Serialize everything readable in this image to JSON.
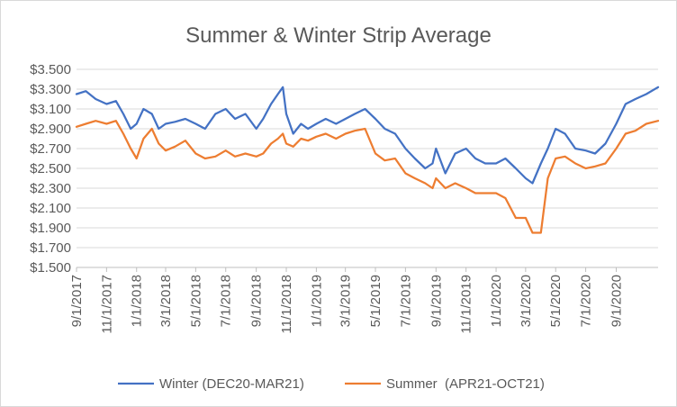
{
  "chart_data": {
    "type": "line",
    "title": "Summer & Winter Strip Average",
    "xlabel": "",
    "ylabel": "",
    "ylim": [
      1.5,
      3.5
    ],
    "y_ticks": [
      "$1.500",
      "$1.700",
      "$1.900",
      "$2.100",
      "$2.300",
      "$2.500",
      "$2.700",
      "$2.900",
      "$3.100",
      "$3.300",
      "$3.500"
    ],
    "x_ticks": [
      "9/1/2017",
      "11/1/2017",
      "1/1/2018",
      "3/1/2018",
      "5/1/2018",
      "7/1/2018",
      "9/1/2018",
      "11/1/2018",
      "1/1/2019",
      "3/1/2019",
      "5/1/2019",
      "7/1/2019",
      "9/1/2019",
      "11/1/2019",
      "1/1/2020",
      "3/1/2020",
      "5/1/2020",
      "7/1/2020",
      "9/1/2020"
    ],
    "x_range": [
      "9/1/2017",
      "11/25/2020"
    ],
    "grid": "horizontal",
    "legend": "bottom",
    "series": [
      {
        "name": "Winter (DEC20-MAR21)",
        "color": "#4472c4",
        "x": [
          "9/1/2017",
          "9/20/2017",
          "10/10/2017",
          "11/1/2017",
          "11/20/2017",
          "12/5/2017",
          "12/20/2017",
          "1/1/2018",
          "1/15/2018",
          "2/1/2018",
          "2/15/2018",
          "3/1/2018",
          "3/20/2018",
          "4/10/2018",
          "5/1/2018",
          "5/20/2018",
          "6/10/2018",
          "7/1/2018",
          "7/20/2018",
          "8/10/2018",
          "9/1/2018",
          "9/15/2018",
          "10/1/2018",
          "10/15/2018",
          "10/25/2018",
          "11/1/2018",
          "11/15/2018",
          "12/1/2018",
          "12/15/2018",
          "1/1/2019",
          "1/20/2019",
          "2/10/2019",
          "3/1/2019",
          "3/20/2019",
          "4/10/2019",
          "5/1/2019",
          "5/20/2019",
          "6/10/2019",
          "7/1/2019",
          "7/20/2019",
          "8/10/2019",
          "8/25/2019",
          "9/1/2019",
          "9/20/2019",
          "10/10/2019",
          "11/1/2019",
          "11/20/2019",
          "12/10/2019",
          "1/1/2020",
          "1/20/2020",
          "2/10/2020",
          "3/1/2020",
          "3/15/2020",
          "4/1/2020",
          "4/15/2020",
          "5/1/2020",
          "5/20/2020",
          "6/10/2020",
          "7/1/2020",
          "7/20/2020",
          "8/10/2020",
          "9/1/2020",
          "9/20/2020",
          "10/10/2020",
          "11/1/2020",
          "11/25/2020"
        ],
        "values": [
          3.25,
          3.28,
          3.2,
          3.15,
          3.18,
          3.05,
          2.9,
          2.95,
          3.1,
          3.05,
          2.9,
          2.95,
          2.97,
          3.0,
          2.95,
          2.9,
          3.05,
          3.1,
          3.0,
          3.05,
          2.9,
          3.0,
          3.15,
          3.25,
          3.32,
          3.05,
          2.85,
          2.95,
          2.9,
          2.95,
          3.0,
          2.95,
          3.0,
          3.05,
          3.1,
          3.0,
          2.9,
          2.85,
          2.7,
          2.6,
          2.5,
          2.55,
          2.7,
          2.45,
          2.65,
          2.7,
          2.6,
          2.55,
          2.55,
          2.6,
          2.5,
          2.4,
          2.35,
          2.55,
          2.7,
          2.9,
          2.85,
          2.7,
          2.68,
          2.65,
          2.75,
          2.95,
          3.15,
          3.2,
          3.25,
          3.32
        ]
      },
      {
        "name": "Summer  (APR21-OCT21)",
        "color": "#ed7d31",
        "x": [
          "9/1/2017",
          "9/20/2017",
          "10/10/2017",
          "11/1/2017",
          "11/20/2017",
          "12/5/2017",
          "12/20/2017",
          "1/1/2018",
          "1/15/2018",
          "2/1/2018",
          "2/15/2018",
          "3/1/2018",
          "3/20/2018",
          "4/10/2018",
          "5/1/2018",
          "5/20/2018",
          "6/10/2018",
          "7/1/2018",
          "7/20/2018",
          "8/10/2018",
          "9/1/2018",
          "9/15/2018",
          "10/1/2018",
          "10/15/2018",
          "10/25/2018",
          "11/1/2018",
          "11/15/2018",
          "12/1/2018",
          "12/15/2018",
          "1/1/2019",
          "1/20/2019",
          "2/10/2019",
          "3/1/2019",
          "3/20/2019",
          "4/10/2019",
          "5/1/2019",
          "5/20/2019",
          "6/10/2019",
          "7/1/2019",
          "7/20/2019",
          "8/10/2019",
          "8/25/2019",
          "9/1/2019",
          "9/20/2019",
          "10/10/2019",
          "11/1/2019",
          "11/20/2019",
          "12/10/2019",
          "1/1/2020",
          "1/20/2020",
          "2/10/2020",
          "3/1/2020",
          "3/15/2020",
          "4/1/2020",
          "4/15/2020",
          "5/1/2020",
          "5/20/2020",
          "6/10/2020",
          "7/1/2020",
          "7/20/2020",
          "8/10/2020",
          "9/1/2020",
          "9/20/2020",
          "10/10/2020",
          "11/1/2020",
          "11/25/2020"
        ],
        "values": [
          2.92,
          2.95,
          2.98,
          2.95,
          2.98,
          2.85,
          2.7,
          2.6,
          2.8,
          2.9,
          2.75,
          2.68,
          2.72,
          2.78,
          2.65,
          2.6,
          2.62,
          2.68,
          2.62,
          2.65,
          2.62,
          2.65,
          2.75,
          2.8,
          2.85,
          2.75,
          2.72,
          2.8,
          2.78,
          2.82,
          2.85,
          2.8,
          2.85,
          2.88,
          2.9,
          2.65,
          2.58,
          2.6,
          2.45,
          2.4,
          2.35,
          2.3,
          2.4,
          2.3,
          2.35,
          2.3,
          2.25,
          2.25,
          2.25,
          2.2,
          2.0,
          2.0,
          1.85,
          1.85,
          2.4,
          2.6,
          2.62,
          2.55,
          2.5,
          2.52,
          2.55,
          2.7,
          2.85,
          2.88,
          2.95,
          2.98
        ]
      }
    ]
  }
}
